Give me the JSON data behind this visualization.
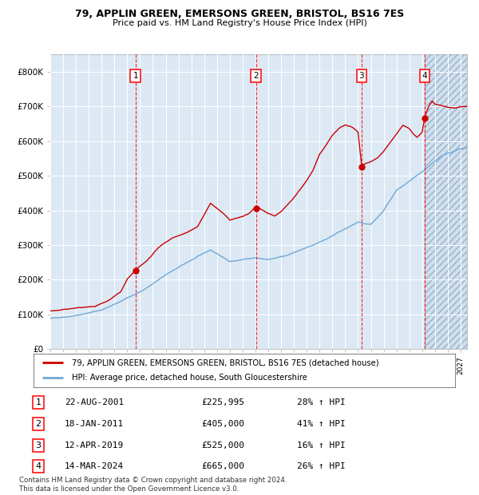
{
  "title1": "79, APPLIN GREEN, EMERSONS GREEN, BRISTOL, BS16 7ES",
  "title2": "Price paid vs. HM Land Registry's House Price Index (HPI)",
  "ylim": [
    0,
    850000
  ],
  "yticks": [
    0,
    100000,
    200000,
    300000,
    400000,
    500000,
    600000,
    700000,
    800000
  ],
  "ytick_labels": [
    "£0",
    "£100K",
    "£200K",
    "£300K",
    "£400K",
    "£500K",
    "£600K",
    "£700K",
    "£800K"
  ],
  "xlim_start": 1995.0,
  "xlim_end": 2027.5,
  "background_color": "#dce9f5",
  "legend_line1": "79, APPLIN GREEN, EMERSONS GREEN, BRISTOL, BS16 7ES (detached house)",
  "legend_line2": "HPI: Average price, detached house, South Gloucestershire",
  "footer": "Contains HM Land Registry data © Crown copyright and database right 2024.\nThis data is licensed under the Open Government Licence v3.0.",
  "sale_dates": [
    2001.644,
    2011.046,
    2019.277,
    2024.204
  ],
  "sale_prices": [
    225995,
    405000,
    525000,
    665000
  ],
  "sale_labels": [
    "1",
    "2",
    "3",
    "4"
  ],
  "table_rows": [
    [
      "1",
      "22-AUG-2001",
      "£225,995",
      "28% ↑ HPI"
    ],
    [
      "2",
      "18-JAN-2011",
      "£405,000",
      "41% ↑ HPI"
    ],
    [
      "3",
      "12-APR-2019",
      "£525,000",
      "16% ↑ HPI"
    ],
    [
      "4",
      "14-MAR-2024",
      "£665,000",
      "26% ↑ HPI"
    ]
  ],
  "hpi_color": "#6fa8d6",
  "price_color": "#cc0000",
  "future_hatch_start": 2024.204
}
